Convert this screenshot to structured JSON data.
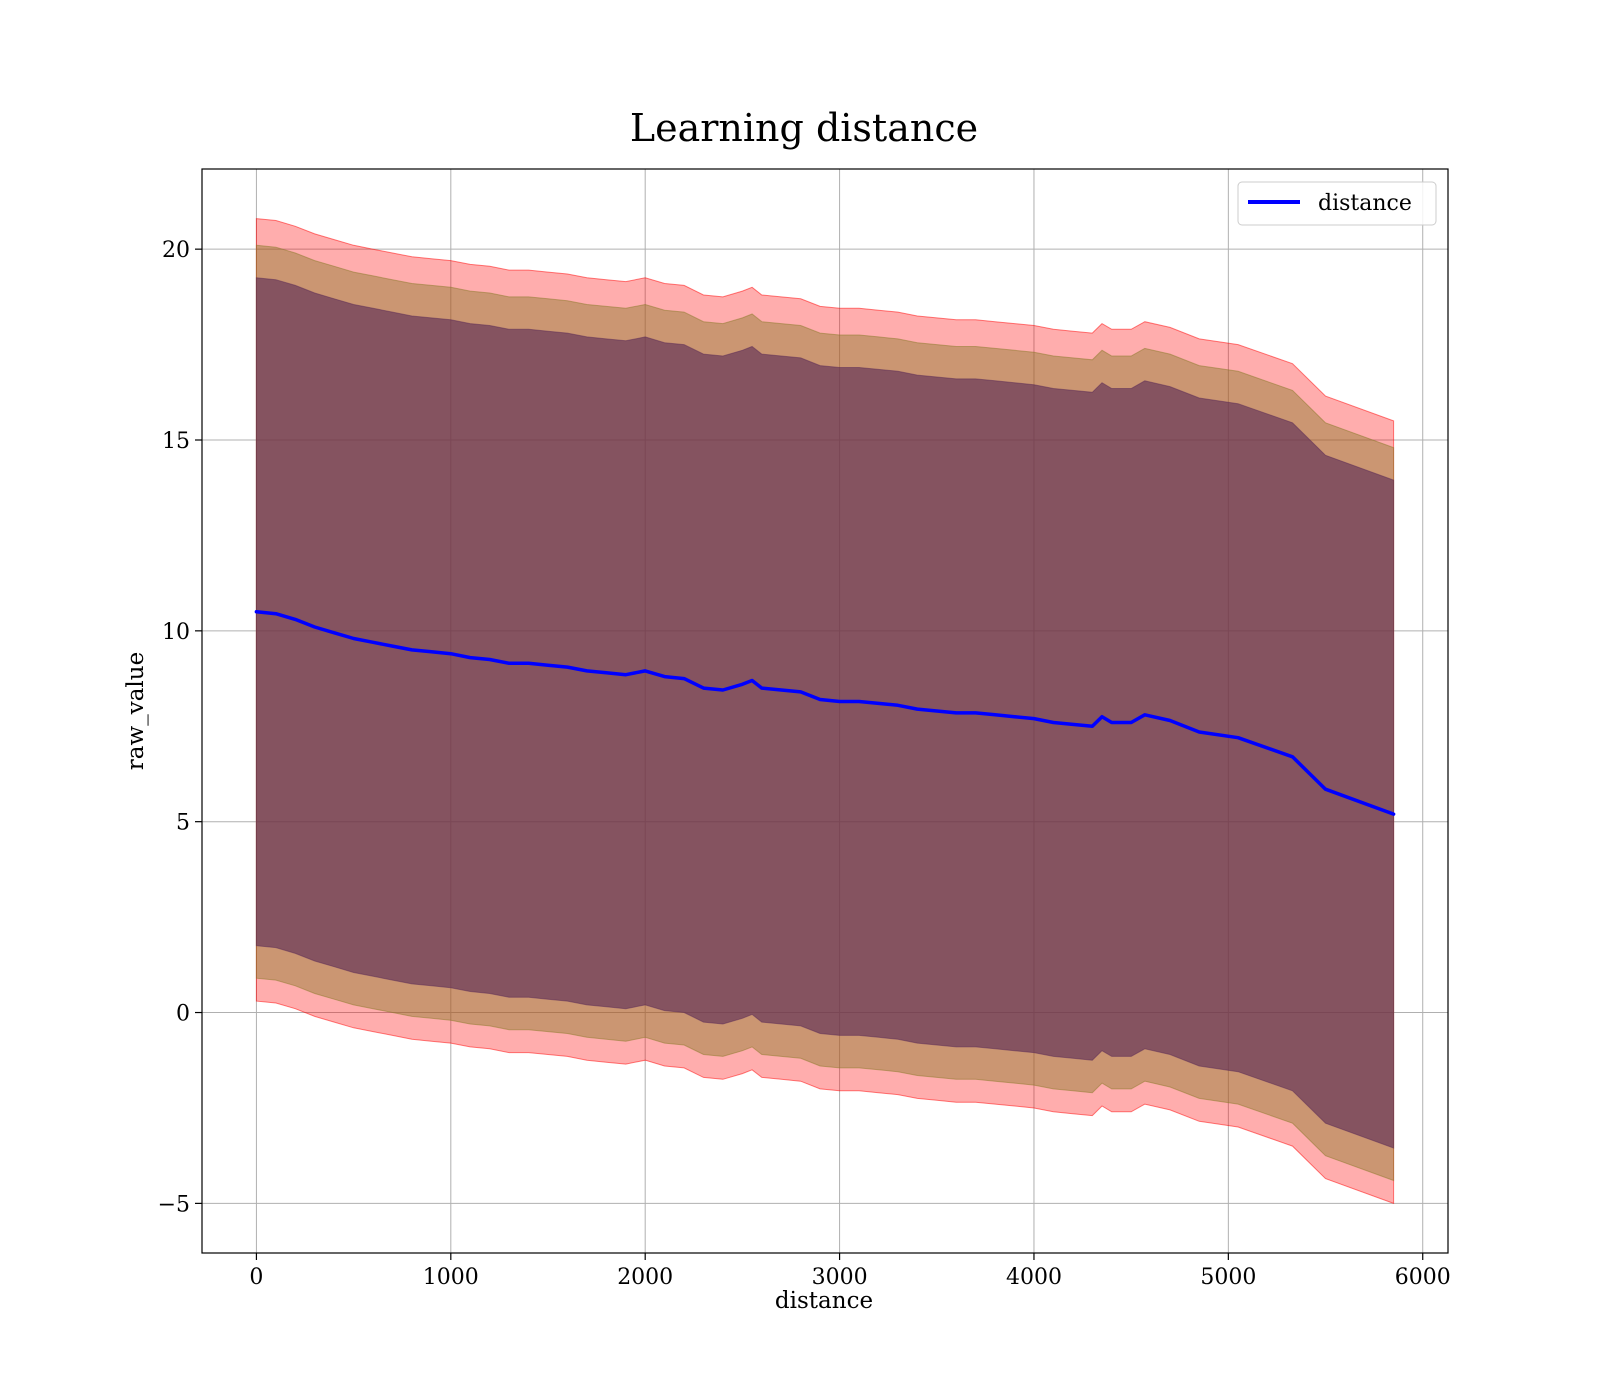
{
  "chart_data": {
    "type": "line",
    "title": "Learning distance",
    "xlabel": "distance",
    "ylabel": "raw_value",
    "xlim": [
      -280,
      6130
    ],
    "ylim": [
      -6.3,
      22.1
    ],
    "xticks": [
      0,
      1000,
      2000,
      3000,
      4000,
      5000,
      6000
    ],
    "xtick_labels": [
      "0",
      "1000",
      "2000",
      "3000",
      "4000",
      "5000",
      "6000"
    ],
    "yticks": [
      -5,
      0,
      5,
      10,
      15,
      20
    ],
    "ytick_labels": [
      "−5",
      "0",
      "5",
      "10",
      "15",
      "20"
    ],
    "grid": true,
    "legend": {
      "position": "top-right",
      "entries": [
        "distance"
      ]
    },
    "colors": {
      "line": "#0000ff",
      "outer_band": "#ff0000",
      "mid_band": "#8b7a2a",
      "inner_band": "#5a2a55",
      "grid": "#b0b0b0"
    },
    "x": [
      0,
      100,
      200,
      300,
      400,
      500,
      600,
      700,
      800,
      900,
      1000,
      1100,
      1200,
      1300,
      1400,
      1500,
      1600,
      1700,
      1800,
      1900,
      2000,
      2100,
      2200,
      2300,
      2400,
      2500,
      2550,
      2600,
      2700,
      2800,
      2900,
      3000,
      3100,
      3200,
      3300,
      3400,
      3500,
      3600,
      3700,
      3800,
      3900,
      4000,
      4100,
      4200,
      4300,
      4350,
      4400,
      4500,
      4570,
      4700,
      4850,
      5050,
      5330,
      5500,
      5850
    ],
    "series": [
      {
        "name": "distance",
        "values": [
          10.5,
          10.45,
          10.3,
          10.1,
          9.95,
          9.8,
          9.7,
          9.6,
          9.5,
          9.45,
          9.4,
          9.3,
          9.25,
          9.15,
          9.15,
          9.1,
          9.05,
          8.95,
          8.9,
          8.85,
          8.95,
          8.8,
          8.75,
          8.5,
          8.45,
          8.6,
          8.7,
          8.5,
          8.45,
          8.4,
          8.2,
          8.15,
          8.15,
          8.1,
          8.05,
          7.95,
          7.9,
          7.85,
          7.85,
          7.8,
          7.75,
          7.7,
          7.6,
          7.55,
          7.5,
          7.75,
          7.6,
          7.6,
          7.8,
          7.65,
          7.35,
          7.2,
          6.7,
          5.85,
          5.2
        ]
      }
    ],
    "bands": [
      {
        "name": "outer",
        "lower_offset": -10.2,
        "upper_offset": 10.3
      },
      {
        "name": "mid",
        "lower_offset": -9.6,
        "upper_offset": 9.6
      },
      {
        "name": "inner",
        "lower_offset": -8.75,
        "upper_offset": 8.75
      }
    ]
  }
}
